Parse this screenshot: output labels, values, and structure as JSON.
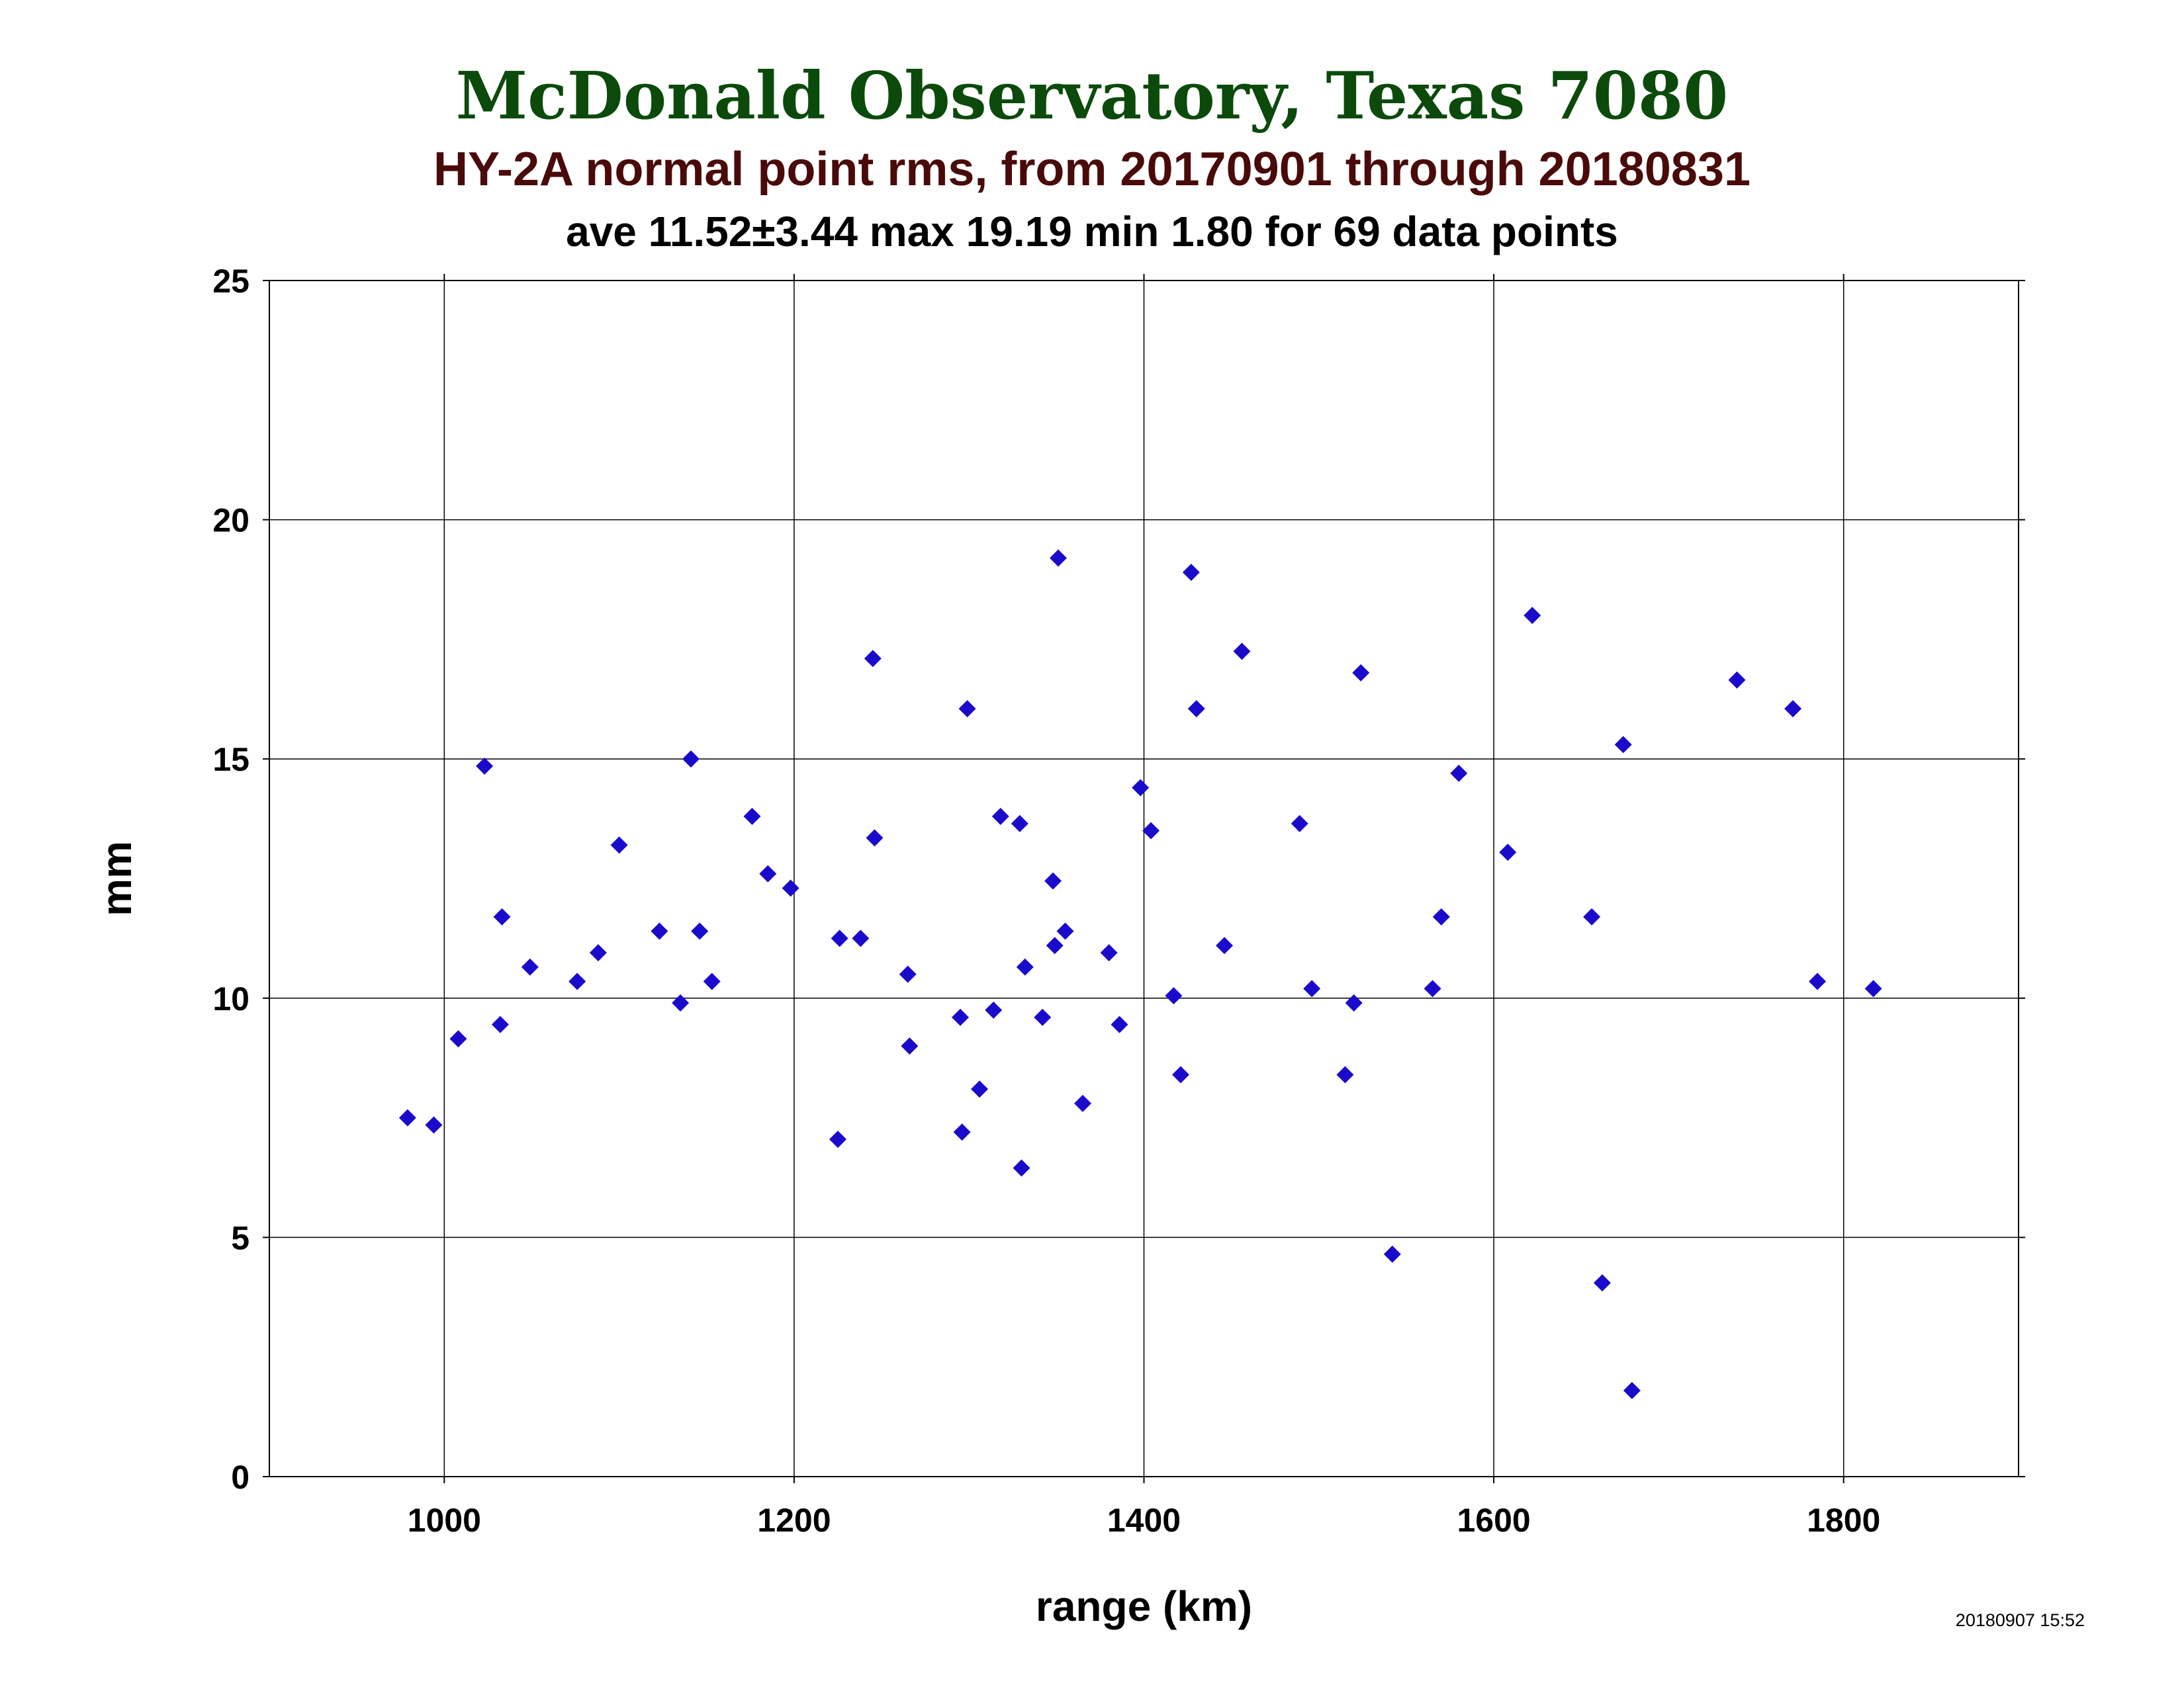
{
  "header": {
    "title": "McDonald Observatory, Texas 7080",
    "subtitle": "HY-2A normal point rms, from 20170901 through 20180831",
    "stats": "ave 11.52±3.44 max 19.19 min 1.80 for 69 data points"
  },
  "footer": {
    "timestamp": "20180907 15:52"
  },
  "colors": {
    "title": "#0b4a0b",
    "subtitle": "#4a0a0a",
    "marker": "#1a0acc",
    "grid": "#000000"
  },
  "chart_data": {
    "type": "scatter",
    "xlabel": "range (km)",
    "ylabel": "mm",
    "xlim": [
      900,
      1900
    ],
    "ylim": [
      0,
      25
    ],
    "xticks": [
      1000,
      1200,
      1400,
      1600,
      1800
    ],
    "yticks": [
      0,
      5,
      10,
      15,
      20,
      25
    ],
    "grid": true,
    "marker": "diamond",
    "points": [
      [
        979,
        7.5
      ],
      [
        994,
        7.35
      ],
      [
        1008,
        9.15
      ],
      [
        1023,
        14.85
      ],
      [
        1032,
        9.45
      ],
      [
        1033,
        11.7
      ],
      [
        1049,
        10.65
      ],
      [
        1076,
        10.35
      ],
      [
        1088,
        10.95
      ],
      [
        1100,
        13.2
      ],
      [
        1123,
        11.4
      ],
      [
        1135,
        9.9
      ],
      [
        1141,
        15.0
      ],
      [
        1146,
        11.4
      ],
      [
        1153,
        10.35
      ],
      [
        1176,
        13.8
      ],
      [
        1185,
        12.6
      ],
      [
        1198,
        12.3
      ],
      [
        1225,
        7.05
      ],
      [
        1226,
        11.25
      ],
      [
        1238,
        11.25
      ],
      [
        1245,
        17.1
      ],
      [
        1246,
        13.35
      ],
      [
        1265,
        10.5
      ],
      [
        1266,
        9.0
      ],
      [
        1295,
        9.6
      ],
      [
        1296,
        7.2
      ],
      [
        1299,
        16.05
      ],
      [
        1306,
        8.1
      ],
      [
        1314,
        9.75
      ],
      [
        1318,
        13.8
      ],
      [
        1329,
        13.65
      ],
      [
        1330,
        6.45
      ],
      [
        1332,
        10.65
      ],
      [
        1342,
        9.6
      ],
      [
        1348,
        12.45
      ],
      [
        1349,
        11.1
      ],
      [
        1351,
        19.2
      ],
      [
        1355,
        11.4
      ],
      [
        1365,
        7.8
      ],
      [
        1380,
        10.95
      ],
      [
        1386,
        9.45
      ],
      [
        1398,
        14.4
      ],
      [
        1404,
        13.5
      ],
      [
        1417,
        10.05
      ],
      [
        1421,
        8.4
      ],
      [
        1427,
        18.9
      ],
      [
        1430,
        16.05
      ],
      [
        1446,
        11.1
      ],
      [
        1456,
        17.25
      ],
      [
        1489,
        13.65
      ],
      [
        1496,
        10.2
      ],
      [
        1515,
        8.4
      ],
      [
        1520,
        9.9
      ],
      [
        1524,
        16.8
      ],
      [
        1542,
        4.65
      ],
      [
        1565,
        10.2
      ],
      [
        1570,
        11.7
      ],
      [
        1580,
        14.7
      ],
      [
        1608,
        13.05
      ],
      [
        1622,
        18.0
      ],
      [
        1656,
        11.7
      ],
      [
        1662,
        4.05
      ],
      [
        1674,
        15.3
      ],
      [
        1679,
        1.8
      ],
      [
        1739,
        16.65
      ],
      [
        1771,
        16.05
      ],
      [
        1785,
        10.35
      ],
      [
        1817,
        10.2
      ]
    ]
  }
}
